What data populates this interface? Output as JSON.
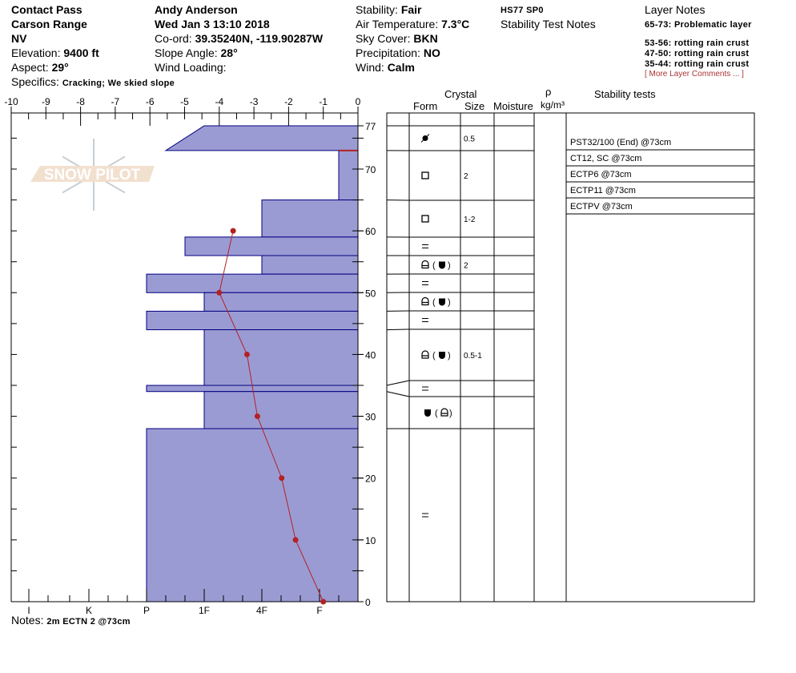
{
  "header": {
    "location": "Contact Pass",
    "range": "Carson Range",
    "state": "NV",
    "elevation_label": "Elevation: ",
    "elevation": "9400 ft",
    "aspect_label": "Aspect: ",
    "aspect": "29°",
    "specifics_label": "Specifics: ",
    "specifics": "Cracking; We skied slope",
    "observer": "Andy Anderson",
    "datetime": "Wed Jan 3 13:10 2018",
    "coord_label": "Co-ord: ",
    "coord": "39.35240N, -119.90287W",
    "slope_label": "Slope Angle: ",
    "slope": "28°",
    "wind_loading_label": "Wind Loading:",
    "stability_label": "Stability: ",
    "stability": "Fair",
    "air_temp_label": "Air Temperature: ",
    "air_temp": "7.3°C",
    "sky_label": "Sky Cover: ",
    "sky": "BKN",
    "precip_label": "Precipitation: ",
    "precip": "NO",
    "wind_label": "Wind:  ",
    "wind": "Calm",
    "hs": "HS77 SP0",
    "stability_test_notes_label": "Stability Test Notes",
    "layer_notes_label": "Layer Notes",
    "layer_notes": [
      "65-73: Problematic layer",
      "53-56: rotting rain crust",
      "47-50: rotting rain crust",
      "35-44: rotting rain crust"
    ],
    "more_comments": "[ More Layer Comments ... ]"
  },
  "notes_label": "Notes: ",
  "notes": "2m ECTN 2 @73cm",
  "logo_text": "SNOW PILOT",
  "table_headers": {
    "crystal": "Crystal",
    "form": "Form",
    "size": "Size",
    "moisture": "Moisture",
    "rho": "ρ",
    "density_unit": "kg/m³",
    "stability_tests": "Stability tests"
  },
  "colors": {
    "hardness_fill": "#9b9bd4",
    "hardness_stroke": "#000080",
    "temperature": "#b22222"
  },
  "chart_data": {
    "type": "line",
    "temperature_axis": {
      "ticks": [
        "-10",
        "-9",
        "-8",
        "-7",
        "-6",
        "-5",
        "-4",
        "-3",
        "-2",
        "-1",
        "0"
      ],
      "range": [
        -10,
        0
      ]
    },
    "height_axis": {
      "ticks": [
        "0",
        "10",
        "20",
        "30",
        "40",
        "50",
        "60",
        "70",
        "77"
      ],
      "range": [
        0,
        77
      ]
    },
    "hardness_axis": {
      "ticks": [
        "I",
        "K",
        "P",
        "1F",
        "4F",
        "F"
      ]
    },
    "hardness_layers": [
      {
        "top": 77,
        "bottom": 73,
        "hardness_top": "1F",
        "hardness_bottom": "P-"
      },
      {
        "top": 73,
        "bottom": 65,
        "hardness": "F-"
      },
      {
        "top": 65,
        "bottom": 59,
        "hardness": "4F"
      },
      {
        "top": 59,
        "bottom": 56,
        "hardness": "1F+"
      },
      {
        "top": 56,
        "bottom": 53,
        "hardness": "4F"
      },
      {
        "top": 53,
        "bottom": 50,
        "hardness": "P"
      },
      {
        "top": 50,
        "bottom": 47,
        "hardness": "1F"
      },
      {
        "top": 47,
        "bottom": 44,
        "hardness": "P"
      },
      {
        "top": 44,
        "bottom": 35,
        "hardness": "1F"
      },
      {
        "top": 35,
        "bottom": 34,
        "hardness": "P"
      },
      {
        "top": 34,
        "bottom": 28,
        "hardness": "1F"
      },
      {
        "top": 28,
        "bottom": 0,
        "hardness": "P"
      }
    ],
    "temperature_profile": [
      {
        "height": 60,
        "temp": -3.6
      },
      {
        "height": 50,
        "temp": -4.0
      },
      {
        "height": 40,
        "temp": -3.2
      },
      {
        "height": 30,
        "temp": -2.9
      },
      {
        "height": 20,
        "temp": -2.2
      },
      {
        "height": 10,
        "temp": -1.8
      },
      {
        "height": 0,
        "temp": -1.0
      }
    ]
  },
  "crystal_rows": [
    {
      "form": "graupel-icon",
      "size": "0.5",
      "moisture": ""
    },
    {
      "form": "faceted-icon",
      "size": "2",
      "moisture": ""
    },
    {
      "form": "faceted-icon",
      "size": "1-2",
      "moisture": ""
    },
    {
      "form": "crust-icon",
      "size": "",
      "moisture": ""
    },
    {
      "form": "depth-hoar-mixed-icon",
      "size": "2",
      "moisture": ""
    },
    {
      "form": "crust-icon",
      "size": "",
      "moisture": ""
    },
    {
      "form": "depth-hoar-mixed-icon",
      "size": "",
      "moisture": ""
    },
    {
      "form": "crust-icon",
      "size": "",
      "moisture": ""
    },
    {
      "form": "depth-hoar-mixed-icon",
      "size": "0.5-1",
      "moisture": ""
    },
    {
      "form": "crust-icon",
      "size": "",
      "moisture": ""
    },
    {
      "form": "melt-form-mixed-icon",
      "size": "",
      "moisture": ""
    },
    {
      "form": "crust-icon",
      "size": "",
      "moisture": ""
    }
  ],
  "stability_tests": [
    "PST32/100 (End) @73cm",
    "CT12, SC @73cm",
    "ECTP6 @73cm",
    "ECTP11 @73cm",
    "ECTPV @73cm"
  ]
}
